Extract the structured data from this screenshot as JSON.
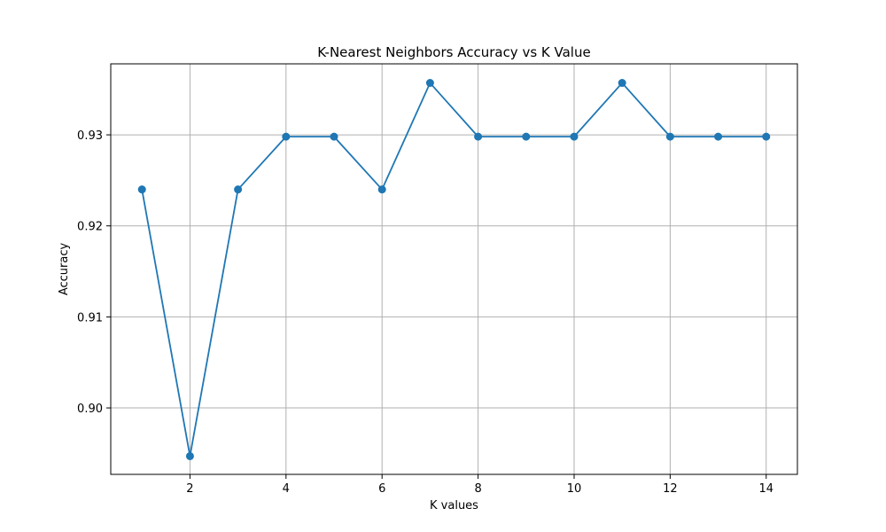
{
  "chart_data": {
    "type": "line",
    "title": "K-Nearest Neighbors Accuracy vs K Value",
    "xlabel": "K values",
    "ylabel": "Accuracy",
    "x": [
      1,
      2,
      3,
      4,
      5,
      6,
      7,
      8,
      9,
      10,
      11,
      12,
      13,
      14
    ],
    "series": [
      {
        "values": [
          0.924,
          0.8947,
          0.924,
          0.9298,
          0.9298,
          0.924,
          0.9357,
          0.9298,
          0.9298,
          0.9298,
          0.9357,
          0.9298,
          0.9298,
          0.9298
        ],
        "color": "#1f77b4",
        "marker": "circle"
      }
    ],
    "xlim": [
      0.35,
      14.65
    ],
    "ylim": [
      0.8927,
      0.9378
    ],
    "xticks": [
      2,
      4,
      6,
      8,
      10,
      12,
      14
    ],
    "xtick_labels": [
      "2",
      "4",
      "6",
      "8",
      "10",
      "12",
      "14"
    ],
    "yticks": [
      0.9,
      0.91,
      0.92,
      0.93
    ],
    "ytick_labels": [
      "0.90",
      "0.91",
      "0.92",
      "0.93"
    ],
    "grid": true,
    "grid_color": "#b0b0b0"
  }
}
